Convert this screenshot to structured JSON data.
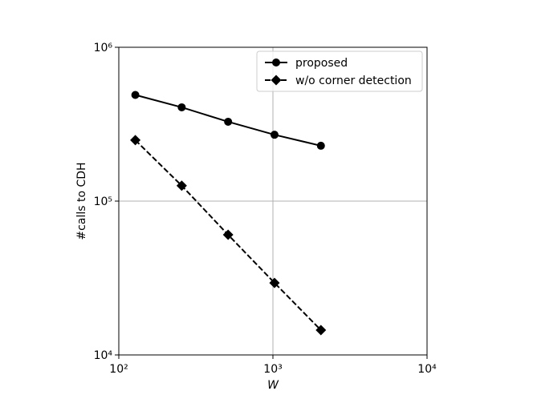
{
  "chart_data": {
    "type": "line",
    "xlabel": "W",
    "ylabel": "#calls to CDH",
    "log_x": true,
    "log_y": true,
    "grid": true,
    "legend": "upper right",
    "x": [
      128,
      256,
      512,
      1024,
      2048
    ],
    "series": [
      {
        "name": "proposed",
        "color": "#000000",
        "marker": "circle",
        "dash": false,
        "values": [
          490000,
          407000,
          328000,
          270000,
          229000
        ]
      },
      {
        "name": "w/o corner detection",
        "color": "#000000",
        "marker": "diamond",
        "dash": true,
        "values": [
          249000,
          126000,
          60400,
          29400,
          14500
        ]
      }
    ],
    "xlim": [
      100,
      10000
    ],
    "xticks": [
      {
        "value": 100,
        "label": "10²"
      },
      {
        "value": 1000,
        "label": "10³"
      },
      {
        "value": 10000,
        "label": "10⁴"
      }
    ],
    "ylim": [
      10000,
      1000000
    ],
    "yticks": [
      {
        "value": 10000,
        "label": "10⁴"
      },
      {
        "value": 100000,
        "label": "10⁵"
      },
      {
        "value": 1000000,
        "label": "10⁶"
      }
    ]
  }
}
